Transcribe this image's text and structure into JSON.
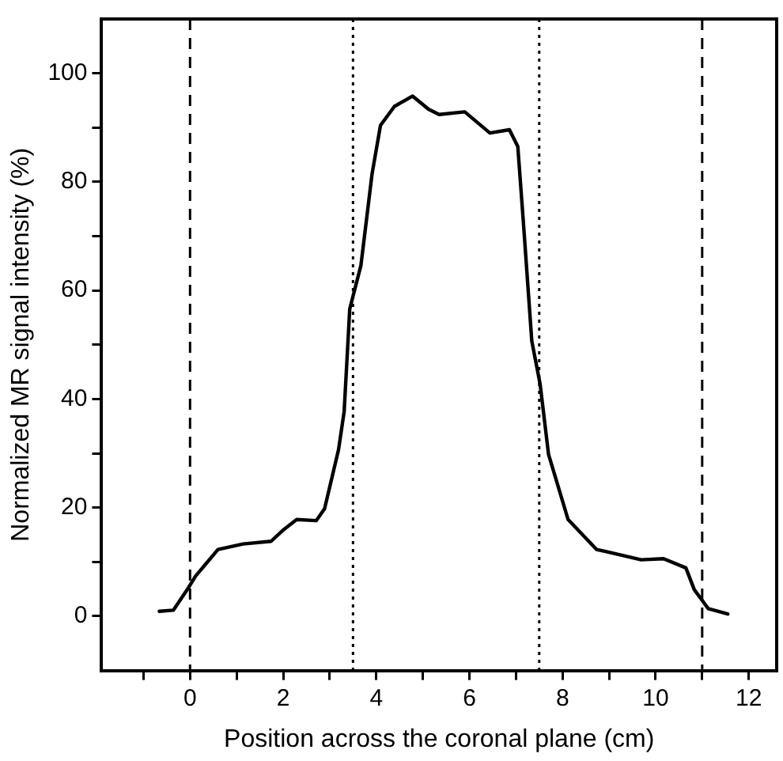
{
  "chart_data": {
    "type": "line",
    "xlabel": "Position across the coronal plane (cm)",
    "ylabel": "Normalized MR signal intensity (%)",
    "xlim": [
      -1.9,
      12.6
    ],
    "ylim": [
      -10,
      110
    ],
    "xticks": [
      {
        "value": -1,
        "label": null
      },
      0,
      {
        "value": 1,
        "label": null
      },
      2,
      {
        "value": 3,
        "label": null
      },
      4,
      {
        "value": 5,
        "label": null
      },
      6,
      {
        "value": 7,
        "label": null
      },
      8,
      {
        "value": 9,
        "label": null
      },
      10,
      {
        "value": 11,
        "label": null
      },
      12
    ],
    "yticks": [
      0,
      {
        "value": 10,
        "label": null
      },
      20,
      {
        "value": 30,
        "label": null
      },
      40,
      {
        "value": 50,
        "label": null
      },
      60,
      {
        "value": 70,
        "label": null
      },
      80,
      {
        "value": 90,
        "label": null
      },
      100
    ],
    "grid": false,
    "legend": false,
    "marker": "none",
    "line_style": "solid",
    "series": [
      {
        "color": "#000000",
        "x": [
          -0.66,
          -0.36,
          -0.06,
          0.12,
          0.6,
          1.14,
          1.74,
          1.99,
          2.29,
          2.71,
          2.89,
          3.19,
          3.31,
          3.43,
          3.67,
          3.91,
          4.09,
          4.39,
          4.78,
          5.12,
          5.35,
          5.9,
          6.44,
          6.86,
          7.04,
          7.16,
          7.34,
          7.52,
          7.7,
          8.12,
          8.73,
          9.69,
          10.17,
          10.65,
          10.83,
          11.13,
          11.55
        ],
        "values": [
          0.9,
          1.1,
          4.9,
          7.4,
          12.3,
          13.3,
          13.8,
          15.8,
          17.8,
          17.6,
          19.8,
          30.7,
          37.7,
          56.6,
          64.6,
          81.5,
          90.4,
          93.9,
          95.8,
          93.4,
          92.4,
          92.9,
          89,
          89.6,
          86.5,
          72.5,
          50.7,
          42.7,
          29.8,
          17.8,
          12.3,
          10.4,
          10.6,
          8.9,
          4.9,
          1.4,
          0.4
        ]
      }
    ],
    "ref_lines": [
      {
        "axis": "x",
        "value": 0,
        "line_style": "dashed",
        "color": "#000000"
      },
      {
        "axis": "x",
        "value": 3.5,
        "line_style": "dotted",
        "color": "#000000"
      },
      {
        "axis": "x",
        "value": 7.5,
        "line_style": "dotted",
        "color": "#000000"
      },
      {
        "axis": "x",
        "value": 11,
        "line_style": "dashed",
        "color": "#000000"
      }
    ]
  }
}
